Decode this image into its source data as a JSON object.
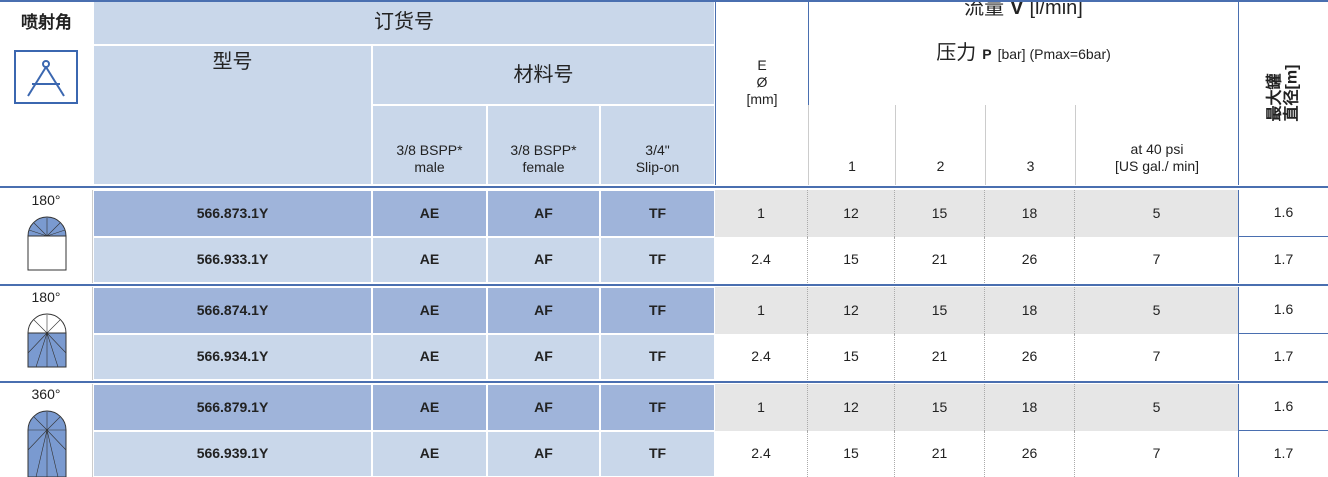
{
  "header": {
    "spray_angle": "喷射角",
    "order_no": "订货号",
    "model": "型号",
    "material_no": "材料号",
    "materials": [
      [
        "3/8 BSPP*",
        "male"
      ],
      [
        "3/8 BSPP*",
        "female"
      ],
      [
        "3/4\"",
        "Slip-on"
      ]
    ],
    "orifice": [
      "E",
      "Ø",
      "[mm]"
    ],
    "flow": [
      "流量",
      "V̇",
      "[l/min]"
    ],
    "pressure": [
      "压力",
      "P",
      "[bar] (Pmax=6bar)"
    ],
    "pressures": [
      1,
      2,
      3
    ],
    "us_flow": [
      "at 40 psi",
      "[US gal./ min]"
    ],
    "max_diameter": [
      "最大罐",
      "直径[m]"
    ]
  },
  "groups": [
    {
      "angle": "180°",
      "rows": [
        {
          "model": "566.873.1Y",
          "materials": [
            "AE",
            "AF",
            "TF"
          ],
          "orifice": 1,
          "flow": [
            12,
            15,
            18
          ],
          "us_flow": 5,
          "max_diameter": 1.6
        },
        {
          "model": "566.933.1Y",
          "materials": [
            "AE",
            "AF",
            "TF"
          ],
          "orifice": 2.4,
          "flow": [
            15,
            21,
            26
          ],
          "us_flow": 7,
          "max_diameter": 1.7
        }
      ]
    },
    {
      "angle": "180°",
      "rows": [
        {
          "model": "566.874.1Y",
          "materials": [
            "AE",
            "AF",
            "TF"
          ],
          "orifice": 1,
          "flow": [
            12,
            15,
            18
          ],
          "us_flow": 5,
          "max_diameter": 1.6
        },
        {
          "model": "566.934.1Y",
          "materials": [
            "AE",
            "AF",
            "TF"
          ],
          "orifice": 2.4,
          "flow": [
            15,
            21,
            26
          ],
          "us_flow": 7,
          "max_diameter": 1.7
        }
      ]
    },
    {
      "angle": "360°",
      "rows": [
        {
          "model": "566.879.1Y",
          "materials": [
            "AE",
            "AF",
            "TF"
          ],
          "orifice": 1,
          "flow": [
            12,
            15,
            18
          ],
          "us_flow": 5,
          "max_diameter": 1.6
        },
        {
          "model": "566.939.1Y",
          "materials": [
            "AE",
            "AF",
            "TF"
          ],
          "orifice": 2.4,
          "flow": [
            15,
            21,
            26
          ],
          "us_flow": 7,
          "max_diameter": 1.7
        }
      ]
    }
  ]
}
